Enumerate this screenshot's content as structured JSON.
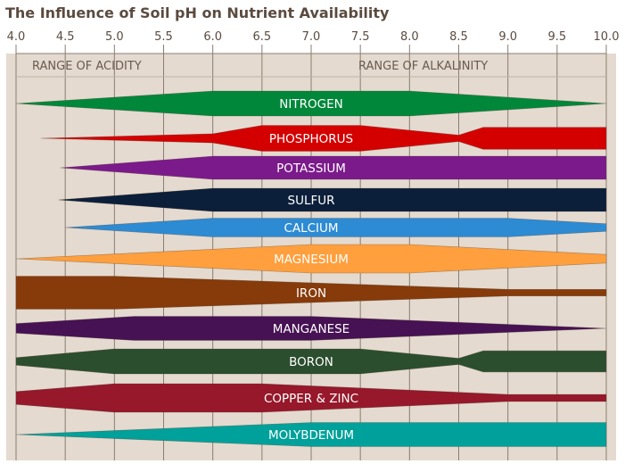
{
  "chart_data": {
    "type": "area",
    "title": "The Influence of Soil pH on Nutrient Availability",
    "xlabel": "",
    "ylabel": "",
    "xlim": [
      4.0,
      10.0
    ],
    "x_ticks": [
      "4.0",
      "4.5",
      "5.0",
      "5.5",
      "6.0",
      "6.5",
      "7.0",
      "7.5",
      "8.0",
      "8.5",
      "9.0",
      "9.5",
      "10.0"
    ],
    "grid": true,
    "annotations": {
      "acidity": "RANGE OF ACIDITY",
      "alkalinity": "RANGE OF ALKALINITY"
    },
    "series": [
      {
        "name": "NITROGEN",
        "color": "#00873a",
        "profile": [
          [
            4.0,
            0
          ],
          [
            6.0,
            1
          ],
          [
            8.0,
            1
          ],
          [
            10.0,
            0
          ]
        ]
      },
      {
        "name": "PHOSPHORUS",
        "color": "#d40000",
        "profile": [
          [
            4.25,
            0
          ],
          [
            6.0,
            0.35
          ],
          [
            6.5,
            1
          ],
          [
            7.5,
            1
          ],
          [
            8.5,
            0.25
          ],
          [
            8.75,
            0.85
          ],
          [
            10.0,
            0.85
          ]
        ]
      },
      {
        "name": "POTASSIUM",
        "color": "#7b1a8a",
        "profile": [
          [
            4.45,
            0
          ],
          [
            6.0,
            1
          ],
          [
            10.0,
            1
          ]
        ]
      },
      {
        "name": "SULFUR",
        "color": "#0c1f3a",
        "profile": [
          [
            4.43,
            0
          ],
          [
            6.0,
            1
          ],
          [
            10.0,
            1
          ]
        ]
      },
      {
        "name": "CALCIUM",
        "color": "#2d8bd3",
        "profile": [
          [
            4.5,
            0
          ],
          [
            6.0,
            1
          ],
          [
            9.0,
            1
          ],
          [
            10.0,
            0.4
          ]
        ]
      },
      {
        "name": "MAGNESIUM",
        "color": "#ff9f3d",
        "profile": [
          [
            4.0,
            0
          ],
          [
            7.0,
            1
          ],
          [
            8.0,
            1
          ],
          [
            10.0,
            0.3
          ]
        ]
      },
      {
        "name": "IRON",
        "color": "#873a0a",
        "profile": [
          [
            4.0,
            1
          ],
          [
            5.0,
            1
          ],
          [
            9.0,
            0.2
          ],
          [
            10.0,
            0.2
          ]
        ]
      },
      {
        "name": "MANGANESE",
        "color": "#461253",
        "profile": [
          [
            4.0,
            0.4
          ],
          [
            5.2,
            1
          ],
          [
            7.0,
            1
          ],
          [
            10.0,
            0
          ]
        ]
      },
      {
        "name": "BORON",
        "color": "#2b4e2e",
        "profile": [
          [
            4.0,
            0.3
          ],
          [
            5.0,
            1
          ],
          [
            7.5,
            1
          ],
          [
            8.5,
            0.25
          ],
          [
            8.75,
            0.85
          ],
          [
            10.0,
            0.85
          ]
        ]
      },
      {
        "name": "COPPER & ZINC",
        "color": "#96182a",
        "profile": [
          [
            4.0,
            0.45
          ],
          [
            5.0,
            1
          ],
          [
            6.5,
            1
          ],
          [
            9.0,
            0.25
          ],
          [
            10.0,
            0.25
          ]
        ]
      },
      {
        "name": "MOLYBDENUM",
        "color": "#00a19a",
        "profile": [
          [
            4.0,
            0
          ],
          [
            7.0,
            1
          ],
          [
            10.0,
            1
          ]
        ]
      }
    ]
  }
}
